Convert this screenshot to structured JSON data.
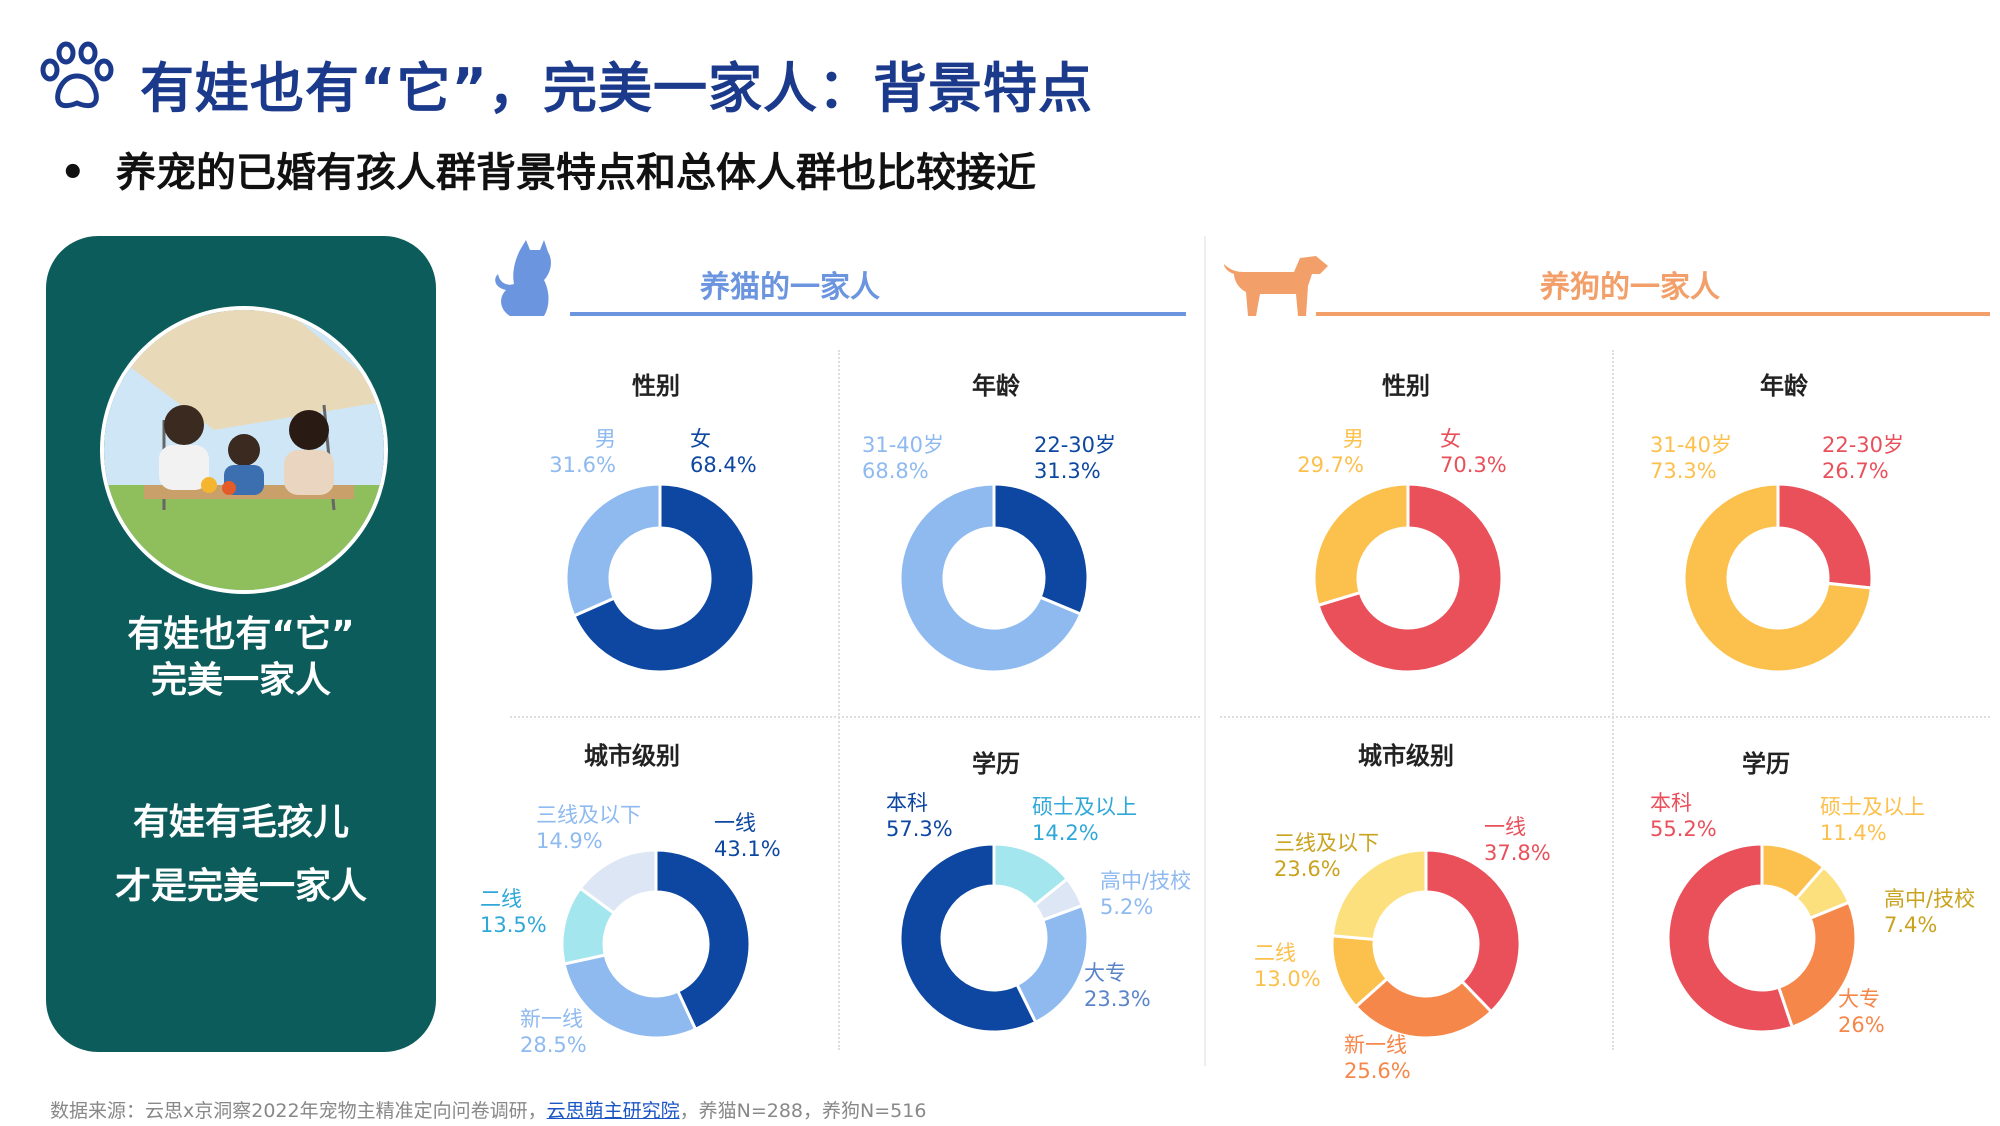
{
  "header": {
    "title": "有娃也有“它”，完美一家人：背景特点",
    "subtitle": "养宠的已婚有孩人群背景特点和总体人群也比较接近"
  },
  "left_panel": {
    "line1": "有娃也有“它”",
    "line2": "完美一家人",
    "line3": "有娃有毛孩儿",
    "line4": "才是完美一家人"
  },
  "sections": {
    "cat": "养猫的一家人",
    "dog": "养狗的一家人"
  },
  "chart_titles": {
    "gender": "性别",
    "age": "年龄",
    "city": "城市级别",
    "edu": "学历"
  },
  "colors": {
    "cat_dark": "#0d47a1",
    "cat_mid": "#8fbaf0",
    "cat_light": "#a3e6ee",
    "cat_pale": "#dde6f4",
    "dog_red": "#e9505a",
    "dog_orange": "#f5874a",
    "dog_yellow": "#fcc04c",
    "dog_pale": "#fde07e",
    "cat_line": "#6c95e0",
    "dog_line": "#f29f69"
  },
  "chart_data": [
    {
      "id": "cat-gender",
      "type": "pie",
      "title": "性别",
      "slices": [
        {
          "label": "女",
          "pct": "68.4%",
          "value": 68.4
        },
        {
          "label": "男",
          "pct": "31.6%",
          "value": 31.6
        }
      ]
    },
    {
      "id": "cat-age",
      "type": "pie",
      "title": "年龄",
      "slices": [
        {
          "label": "22-30岁",
          "pct": "31.3%",
          "value": 31.3
        },
        {
          "label": "31-40岁",
          "pct": "68.8%",
          "value": 68.8
        }
      ]
    },
    {
      "id": "cat-city",
      "type": "pie",
      "title": "城市级别",
      "slices": [
        {
          "label": "一线",
          "pct": "43.1%",
          "value": 43.1
        },
        {
          "label": "新一线",
          "pct": "28.5%",
          "value": 28.5
        },
        {
          "label": "二线",
          "pct": "13.5%",
          "value": 13.5
        },
        {
          "label": "三线及以下",
          "pct": "14.9%",
          "value": 14.9
        }
      ]
    },
    {
      "id": "cat-edu",
      "type": "pie",
      "title": "学历",
      "slices": [
        {
          "label": "硕士及以上",
          "pct": "14.2%",
          "value": 14.2
        },
        {
          "label": "高中/技校",
          "pct": "5.2%",
          "value": 5.2
        },
        {
          "label": "大专",
          "pct": "23.3%",
          "value": 23.3
        },
        {
          "label": "本科",
          "pct": "57.3%",
          "value": 57.3
        }
      ]
    },
    {
      "id": "dog-gender",
      "type": "pie",
      "title": "性别",
      "slices": [
        {
          "label": "女",
          "pct": "70.3%",
          "value": 70.3
        },
        {
          "label": "男",
          "pct": "29.7%",
          "value": 29.7
        }
      ]
    },
    {
      "id": "dog-age",
      "type": "pie",
      "title": "年龄",
      "slices": [
        {
          "label": "22-30岁",
          "pct": "26.7%",
          "value": 26.7
        },
        {
          "label": "31-40岁",
          "pct": "73.3%",
          "value": 73.3
        }
      ]
    },
    {
      "id": "dog-city",
      "type": "pie",
      "title": "城市级别",
      "slices": [
        {
          "label": "一线",
          "pct": "37.8%",
          "value": 37.8
        },
        {
          "label": "新一线",
          "pct": "25.6%",
          "value": 25.6
        },
        {
          "label": "二线",
          "pct": "13.0%",
          "value": 13.0
        },
        {
          "label": "三线及以下",
          "pct": "23.6%",
          "value": 23.6
        }
      ]
    },
    {
      "id": "dog-edu",
      "type": "pie",
      "title": "学历",
      "slices": [
        {
          "label": "硕士及以上",
          "pct": "11.4%",
          "value": 11.4
        },
        {
          "label": "高中/技校",
          "pct": "7.4%",
          "value": 7.4
        },
        {
          "label": "大专",
          "pct": "26%",
          "value": 26
        },
        {
          "label": "本科",
          "pct": "55.2%",
          "value": 55.2
        }
      ]
    }
  ],
  "footer": {
    "prefix": "数据来源：云思x京洞察2022年宠物主精准定向问卷调研，",
    "link": "云思萌主研究院",
    "suffix": "，养猫N=288，养狗N=516"
  }
}
